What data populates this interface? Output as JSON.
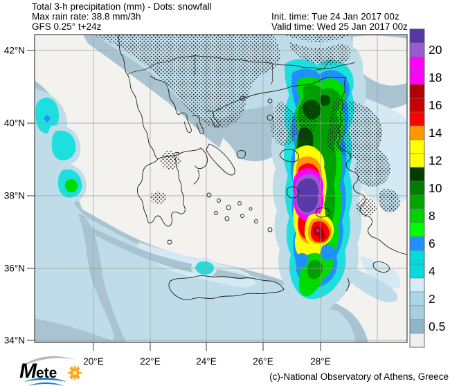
{
  "header": {
    "line1": "Total 3-h precipitation (mm) - Dots: snowfall",
    "line2": "Max rain rate: 38.8 mm/3h",
    "line3": "GFS 0.25° t+24z",
    "init_time": "Init. time: Tue 24 Jan 2017 00z",
    "valid_time": "Valid time: Wed 25 Jan 2017 00z"
  },
  "colorbar": {
    "labels": [
      "20",
      "18",
      "16",
      "14",
      "12",
      "10",
      "8",
      "6",
      "4",
      "2",
      "0.5"
    ],
    "segments": [
      "#5636a8",
      "#9a5ad2",
      "#ff00ff",
      "#ff00ff",
      "#b00000",
      "#c80000",
      "#ff0000",
      "#ff9800",
      "#ffff00",
      "#ffff00",
      "#003c00",
      "#007d00",
      "#00a500",
      "#00d200",
      "#00ff00",
      "#1e90ff",
      "#00dcdc",
      "#00dcdc",
      "#d4ecf7",
      "#a8d8e8",
      "#a8cfe0",
      "#8fb6c8",
      "#f0efed"
    ]
  },
  "axes": {
    "lat": [
      "42°N",
      "40°N",
      "38°N",
      "36°N",
      "34°N"
    ],
    "lon": [
      "20°E",
      "22°E",
      "24°E",
      "26°E",
      "28°E"
    ]
  },
  "footer": {
    "credit": "(c)-National Observatory of Athens, Greece"
  },
  "logo": {
    "m": "M",
    "ete": "ete"
  },
  "palette": {
    "base": "#f3f2ef",
    "p05": "#a9c4d0",
    "p2": "#bfdde9",
    "p3": "#d4e9f3",
    "cyan4": "#1edede",
    "blue6": "#1e90ff",
    "green8": "#00dc00",
    "green10": "#00a000",
    "green12": "#004b00",
    "yellow": "#ffff00",
    "orange": "#ff9800",
    "red": "#ff0000",
    "darkred": "#b00000",
    "magenta": "#ff00ff",
    "amethyst": "#9a5ad2",
    "violet": "#5a3aa8",
    "coast": "#1a1a1a",
    "grid": "#9a9a9a",
    "frame": "#444444",
    "logo_blue": "#1d7dc4",
    "logo_navy": "#173a66",
    "logo_sun": "#f7a823",
    "logo_gray": "#b5b8bb"
  }
}
